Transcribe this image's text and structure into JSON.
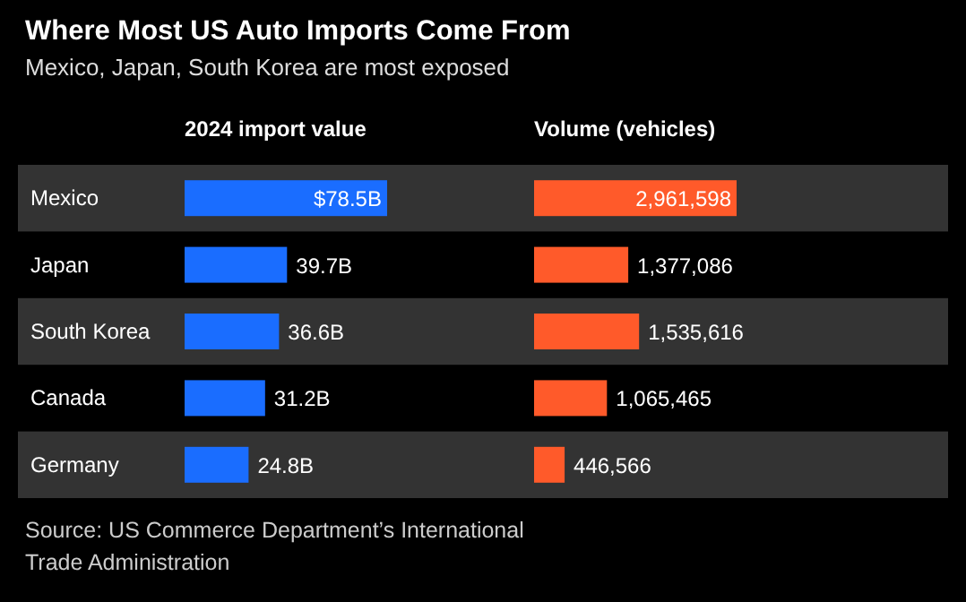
{
  "chart_data": [
    {
      "type": "other",
      "title": "Where Most US Auto Imports Come From",
      "subtitle": "Mexico, Japan, South Korea are most exposed",
      "annotations": [
        "Source: US Commerce Department’s International Trade Administration"
      ]
    },
    {
      "type": "bar",
      "orientation": "horizontal",
      "title": "2024 import value",
      "categories": [
        "Mexico",
        "Japan",
        "South Korea",
        "Canada",
        "Germany"
      ],
      "values": [
        78.5,
        39.7,
        36.6,
        31.2,
        24.8
      ],
      "value_labels": [
        "$78.5B",
        "39.7B",
        "36.6B",
        "31.2B",
        "24.8B"
      ],
      "color": "#1a6dff"
    },
    {
      "type": "bar",
      "orientation": "horizontal",
      "title": "Volume (vehicles)",
      "categories": [
        null,
        null,
        null,
        null,
        null
      ],
      "values": [
        2961598,
        1377086,
        1535616,
        1065465,
        446566
      ],
      "value_labels": [
        "2,961,598",
        "1,377,086",
        "1,535,616",
        "1,065,465",
        "446,566"
      ],
      "color": "#ff5a2a"
    }
  ]
}
